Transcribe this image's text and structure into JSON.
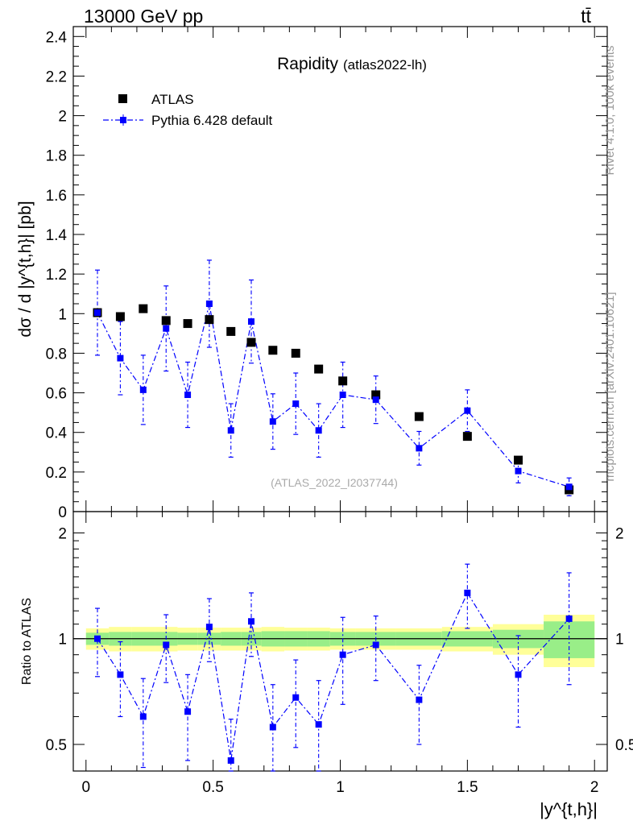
{
  "header": {
    "left": "13000 GeV pp",
    "right": "tt̄"
  },
  "side_text": {
    "version": "Rivet 4.1.0,  100k events",
    "source": "mcplots.cern.ch [arXiv:2401.10621]"
  },
  "chart_data": {
    "type": "scatter",
    "title": "Rapidity",
    "subtitle": "(atlas2022-lh)",
    "watermark": "(ATLAS_2022_I2037744)",
    "ylabel": "dσ / d |y^{t,h}| [pb]",
    "xlabel": "|y^{t,h}|",
    "ratio_ylabel": "Ratio to ATLAS",
    "xlim": [
      -0.05,
      2.05
    ],
    "ylim": [
      0,
      2.45
    ],
    "ratio_ylim": [
      0.42,
      2.3
    ],
    "ratio_ref": 1,
    "main_yticks": [
      {
        "v": 0,
        "label": "0"
      },
      {
        "v": 0.2,
        "label": "0.2"
      },
      {
        "v": 0.4,
        "label": "0.4"
      },
      {
        "v": 0.6,
        "label": "0.6"
      },
      {
        "v": 0.8,
        "label": "0.8"
      },
      {
        "v": 1,
        "label": "1"
      },
      {
        "v": 1.2,
        "label": "1.2"
      },
      {
        "v": 1.4,
        "label": "1.4"
      },
      {
        "v": 1.6,
        "label": "1.6"
      },
      {
        "v": 1.8,
        "label": "1.8"
      },
      {
        "v": 2,
        "label": "2"
      },
      {
        "v": 2.2,
        "label": "2.2"
      },
      {
        "v": 2.4,
        "label": "2.4"
      }
    ],
    "ratio_yticks": [
      {
        "v": 0.5,
        "label": "0.5"
      },
      {
        "v": 1,
        "label": "1"
      },
      {
        "v": 2,
        "label": "2"
      }
    ],
    "xticks": [
      {
        "v": 0,
        "label": "0"
      },
      {
        "v": 0.5,
        "label": "0.5"
      },
      {
        "v": 1,
        "label": "1"
      },
      {
        "v": 1.5,
        "label": "1.5"
      },
      {
        "v": 2,
        "label": "2"
      }
    ],
    "bins": [
      {
        "lo": 0.0,
        "hi": 0.09,
        "g": 0.04,
        "y": 0.07
      },
      {
        "lo": 0.09,
        "hi": 0.18,
        "g": 0.045,
        "y": 0.08
      },
      {
        "lo": 0.18,
        "hi": 0.27,
        "g": 0.045,
        "y": 0.08
      },
      {
        "lo": 0.27,
        "hi": 0.36,
        "g": 0.045,
        "y": 0.08
      },
      {
        "lo": 0.36,
        "hi": 0.44,
        "g": 0.04,
        "y": 0.075
      },
      {
        "lo": 0.44,
        "hi": 0.53,
        "g": 0.04,
        "y": 0.075
      },
      {
        "lo": 0.53,
        "hi": 0.61,
        "g": 0.045,
        "y": 0.075
      },
      {
        "lo": 0.61,
        "hi": 0.69,
        "g": 0.045,
        "y": 0.075
      },
      {
        "lo": 0.69,
        "hi": 0.78,
        "g": 0.05,
        "y": 0.08
      },
      {
        "lo": 0.78,
        "hi": 0.87,
        "g": 0.05,
        "y": 0.075
      },
      {
        "lo": 0.87,
        "hi": 0.96,
        "g": 0.05,
        "y": 0.075
      },
      {
        "lo": 0.96,
        "hi": 1.06,
        "g": 0.045,
        "y": 0.07
      },
      {
        "lo": 1.06,
        "hi": 1.22,
        "g": 0.045,
        "y": 0.07
      },
      {
        "lo": 1.22,
        "hi": 1.4,
        "g": 0.045,
        "y": 0.07
      },
      {
        "lo": 1.4,
        "hi": 1.6,
        "g": 0.05,
        "y": 0.08
      },
      {
        "lo": 1.6,
        "hi": 1.8,
        "g": 0.06,
        "y": 0.1
      },
      {
        "lo": 1.8,
        "hi": 2.0,
        "g": 0.12,
        "y": 0.17
      }
    ],
    "series": [
      {
        "name": "ATLAS",
        "style": "marker",
        "color": "#000000",
        "x": [
          0.045,
          0.135,
          0.225,
          0.315,
          0.4,
          0.485,
          0.57,
          0.65,
          0.735,
          0.825,
          0.915,
          1.01,
          1.14,
          1.31,
          1.5,
          1.7,
          1.9
        ],
        "y": [
          1.005,
          0.985,
          1.025,
          0.965,
          0.95,
          0.97,
          0.91,
          0.855,
          0.815,
          0.8,
          0.72,
          0.66,
          0.59,
          0.48,
          0.38,
          0.26,
          0.11
        ]
      },
      {
        "name": "Pythia 6.428 default",
        "style": "dashdot",
        "color": "#0000ff",
        "x": [
          0.045,
          0.135,
          0.225,
          0.315,
          0.4,
          0.485,
          0.57,
          0.65,
          0.735,
          0.825,
          0.915,
          1.01,
          1.14,
          1.31,
          1.5,
          1.7,
          1.9
        ],
        "y": [
          1.005,
          0.775,
          0.615,
          0.925,
          0.59,
          1.05,
          0.41,
          0.96,
          0.455,
          0.545,
          0.41,
          0.59,
          0.565,
          0.32,
          0.51,
          0.205,
          0.125
        ],
        "err": [
          0.215,
          0.185,
          0.175,
          0.215,
          0.165,
          0.22,
          0.135,
          0.21,
          0.14,
          0.155,
          0.135,
          0.165,
          0.12,
          0.085,
          0.105,
          0.06,
          0.045
        ],
        "ratio": [
          1.0,
          0.79,
          0.6,
          0.96,
          0.62,
          1.08,
          0.45,
          1.12,
          0.56,
          0.68,
          0.57,
          0.9,
          0.96,
          0.67,
          1.35,
          0.79,
          1.14
        ],
        "ratio_err": [
          0.22,
          0.19,
          0.17,
          0.21,
          0.17,
          0.22,
          0.14,
          0.23,
          0.18,
          0.19,
          0.19,
          0.25,
          0.2,
          0.17,
          0.28,
          0.23,
          0.4
        ]
      }
    ]
  }
}
